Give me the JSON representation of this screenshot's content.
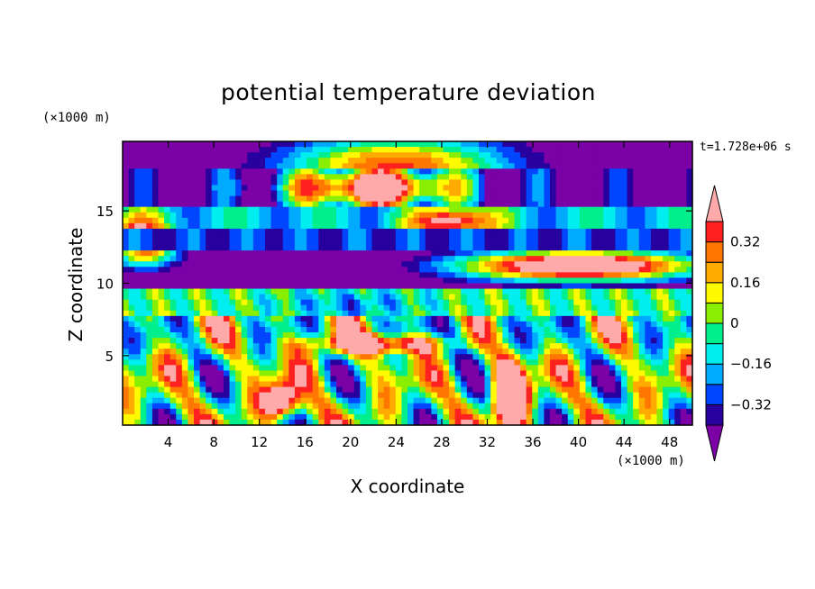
{
  "chart_data": {
    "type": "heatmap",
    "title": "potential temperature deviation",
    "xlabel": "X coordinate",
    "ylabel": "Z coordinate",
    "x_unit": "(×1000 m)",
    "y_unit": "(×1000 m)",
    "time_label": "t=1.728e+06 s",
    "xlim": [
      0,
      50
    ],
    "ylim": [
      0.2,
      19.8
    ],
    "x_ticks": [
      4,
      8,
      12,
      16,
      20,
      24,
      28,
      32,
      36,
      40,
      44,
      48
    ],
    "x_tick_labels": [
      "4",
      "8",
      "12",
      "16",
      "20",
      "24",
      "28",
      "32",
      "36",
      "40",
      "44",
      "48"
    ],
    "y_ticks": [
      5,
      10,
      15
    ],
    "y_tick_labels": [
      "5",
      "10",
      "15"
    ],
    "colorbar": {
      "levels": [
        -0.4,
        -0.32,
        -0.24,
        -0.16,
        -0.08,
        0,
        0.08,
        0.16,
        0.24,
        0.32,
        0.4
      ],
      "tick_values": [
        0.32,
        0.16,
        0,
        -0.16,
        -0.32
      ],
      "tick_labels": [
        "0.32",
        "0.16",
        "0",
        "−0.16",
        "−0.32"
      ],
      "colors": [
        "#7b00a6",
        "#27009e",
        "#0046ff",
        "#00aaff",
        "#00eef0",
        "#00ee8c",
        "#8aee00",
        "#fffa00",
        "#ffaa00",
        "#ff7700",
        "#ff2020",
        "#ffaaaa"
      ],
      "extend": "both"
    }
  }
}
